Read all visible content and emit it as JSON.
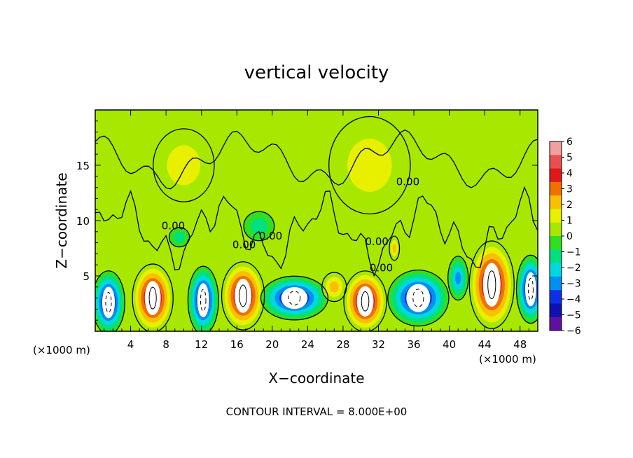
{
  "chart_data": {
    "type": "heatmap",
    "title": "vertical velocity",
    "xlabel": "X−coordinate",
    "ylabel": "Z−coordinate",
    "x_unit_label": "(×1000 m)",
    "x_unit_label_right": "(×1000 m)",
    "footer": "CONTOUR INTERVAL = 8.000E+00",
    "xlim": [
      0,
      50
    ],
    "ylim": [
      0,
      20
    ],
    "x_ticks": [
      4,
      8,
      12,
      16,
      20,
      24,
      28,
      32,
      36,
      40,
      44,
      48
    ],
    "y_ticks": [
      5,
      10,
      15
    ],
    "contour_labels": [
      "0.00",
      "0.00",
      "0.00",
      "0.00",
      "0.00",
      "0.00"
    ],
    "colorbar": {
      "range": [
        -6,
        6
      ],
      "ticks": [
        6,
        5,
        4,
        3,
        2,
        1,
        0,
        -1,
        -2,
        -3,
        -4,
        -5,
        -6
      ],
      "tick_labels": [
        "6",
        "5",
        "4",
        "3",
        "2",
        "1",
        "0",
        "−1",
        "−2",
        "−3",
        "−4",
        "−5",
        "−6"
      ],
      "colors": [
        "#f0a0a0",
        "#e85050",
        "#e01818",
        "#f07000",
        "#f8c000",
        "#e8f000",
        "#a8e800",
        "#30e020",
        "#00e080",
        "#00d8e0",
        "#0090f0",
        "#1030e8",
        "#1010b0",
        "#6010a0"
      ]
    },
    "cells": [
      {
        "x": 1.5,
        "z": 2.6,
        "rx": 1.6,
        "rz": 2.6,
        "value": -6
      },
      {
        "x": 6.5,
        "z": 3.0,
        "rx": 2.0,
        "rz": 2.8,
        "value": 6
      },
      {
        "x": 12.2,
        "z": 2.8,
        "rx": 1.5,
        "rz": 2.8,
        "value": -6
      },
      {
        "x": 16.7,
        "z": 3.2,
        "rx": 2.1,
        "rz": 2.8,
        "value": 6
      },
      {
        "x": 22.5,
        "z": 3.0,
        "rx": 3.3,
        "rz": 1.8,
        "value": -6
      },
      {
        "x": 30.5,
        "z": 2.7,
        "rx": 2.1,
        "rz": 2.5,
        "value": 6
      },
      {
        "x": 36.5,
        "z": 3.0,
        "rx": 3.0,
        "rz": 2.3,
        "value": -6
      },
      {
        "x": 41.0,
        "z": 4.8,
        "rx": 1.0,
        "rz": 1.8,
        "value": -3
      },
      {
        "x": 44.8,
        "z": 4.2,
        "rx": 2.2,
        "rz": 3.6,
        "value": 6
      },
      {
        "x": 49.2,
        "z": 3.8,
        "rx": 1.4,
        "rz": 2.8,
        "value": -6
      },
      {
        "x": 27.0,
        "z": 4.0,
        "rx": 1.2,
        "rz": 1.2,
        "value": 2
      },
      {
        "x": 9.5,
        "z": 8.5,
        "rx": 1.0,
        "rz": 0.8,
        "value": -1
      },
      {
        "x": 18.5,
        "z": 9.5,
        "rx": 1.5,
        "rz": 1.2,
        "value": -1
      },
      {
        "x": 33.8,
        "z": 7.5,
        "rx": 0.5,
        "rz": 1.0,
        "value": 2
      },
      {
        "x": 31.0,
        "z": 15.0,
        "rx": 4.0,
        "rz": 4.0,
        "value": 0
      },
      {
        "x": 10.0,
        "z": 15.0,
        "rx": 3.0,
        "rz": 3.0,
        "value": 0
      }
    ]
  }
}
